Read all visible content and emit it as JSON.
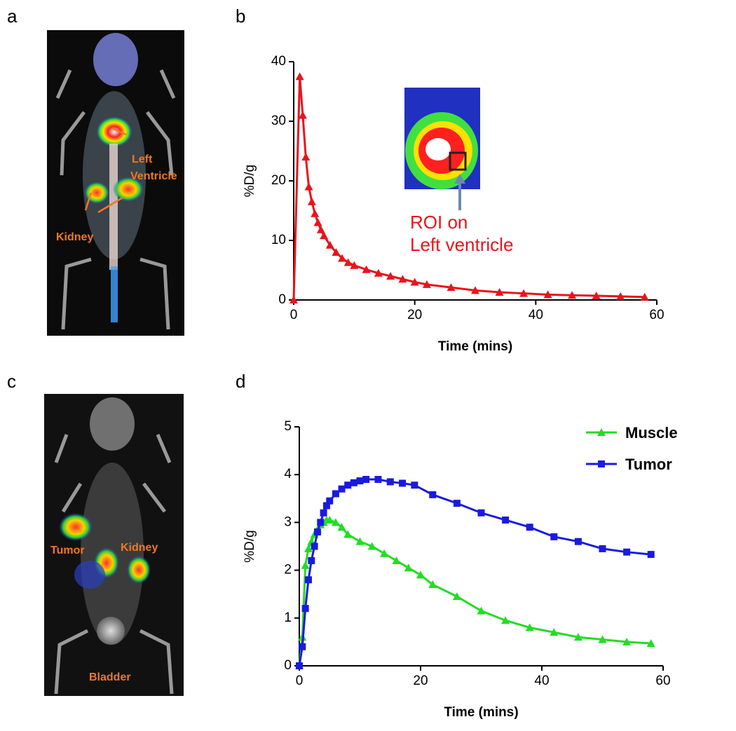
{
  "panels": [
    "a",
    "b",
    "c",
    "d"
  ],
  "images": [
    {
      "labels": [
        {
          "lines": [
            "Left",
            "Ventricle"
          ]
        },
        {
          "lines": [
            "Kidney"
          ]
        }
      ]
    },
    {
      "labels": [
        {
          "lines": [
            "Tumor"
          ]
        },
        {
          "lines": [
            "Kidney"
          ]
        },
        {
          "lines": [
            "Bladder"
          ]
        }
      ]
    }
  ],
  "chart_data": [
    {
      "type": "line",
      "xlabel": "Time (mins)",
      "ylabel": "%D/g",
      "annotation": [
        "ROI on",
        "Left ventricle"
      ],
      "xlim": [
        0,
        60
      ],
      "xticks": [
        0,
        20,
        40,
        60
      ],
      "ylim": [
        0,
        40
      ],
      "yticks": [
        0,
        10,
        20,
        30,
        40
      ],
      "series": [
        {
          "color": "#e8141c",
          "marker": "triangle",
          "x": [
            0,
            1,
            1.5,
            2,
            2.5,
            3,
            3.5,
            4,
            4.5,
            5,
            6,
            7,
            8,
            9,
            10,
            12,
            14,
            16,
            18,
            20,
            22,
            26,
            30,
            34,
            38,
            42,
            46,
            50,
            54,
            58
          ],
          "values": [
            0,
            37.5,
            31,
            24,
            19,
            16.5,
            14.5,
            13,
            11.8,
            10.8,
            9.2,
            8,
            7,
            6.3,
            5.8,
            5.1,
            4.5,
            4,
            3.5,
            3,
            2.6,
            2.1,
            1.6,
            1.3,
            1.1,
            0.9,
            0.8,
            0.7,
            0.6,
            0.5
          ]
        }
      ]
    },
    {
      "type": "line",
      "xlabel": "Time (mins)",
      "ylabel": "%D/g",
      "legend": "upper right",
      "xlim": [
        0,
        60
      ],
      "xticks": [
        0,
        20,
        40,
        60
      ],
      "ylim": [
        0,
        5
      ],
      "yticks": [
        0,
        1,
        2,
        3,
        4,
        5
      ],
      "series": [
        {
          "name": "Muscle",
          "color": "#22dd22",
          "marker": "triangle",
          "x": [
            0,
            0.5,
            1,
            1.5,
            2,
            2.5,
            3,
            3.5,
            4,
            4.5,
            5,
            6,
            7,
            8,
            10,
            12,
            14,
            16,
            18,
            20,
            22,
            26,
            30,
            34,
            38,
            42,
            46,
            50,
            54,
            58
          ],
          "values": [
            0,
            0.6,
            2.1,
            2.45,
            2.6,
            2.75,
            2.85,
            2.95,
            3,
            3.05,
            3.05,
            3,
            2.9,
            2.75,
            2.6,
            2.5,
            2.35,
            2.2,
            2.05,
            1.9,
            1.7,
            1.45,
            1.15,
            0.95,
            0.8,
            0.7,
            0.6,
            0.55,
            0.5,
            0.47
          ]
        },
        {
          "name": "Tumor",
          "color": "#1a1ae0",
          "marker": "square",
          "x": [
            0,
            0.5,
            1,
            1.5,
            2,
            2.5,
            3,
            3.5,
            4,
            4.5,
            5,
            6,
            7,
            8,
            9,
            10,
            11,
            13,
            15,
            17,
            19,
            22,
            26,
            30,
            34,
            38,
            42,
            46,
            50,
            54,
            58
          ],
          "values": [
            0,
            0.4,
            1.2,
            1.8,
            2.2,
            2.5,
            2.8,
            3,
            3.2,
            3.35,
            3.45,
            3.6,
            3.7,
            3.78,
            3.83,
            3.87,
            3.9,
            3.9,
            3.85,
            3.82,
            3.78,
            3.58,
            3.4,
            3.2,
            3.05,
            2.9,
            2.7,
            2.6,
            2.45,
            2.38,
            2.33
          ]
        }
      ]
    }
  ]
}
